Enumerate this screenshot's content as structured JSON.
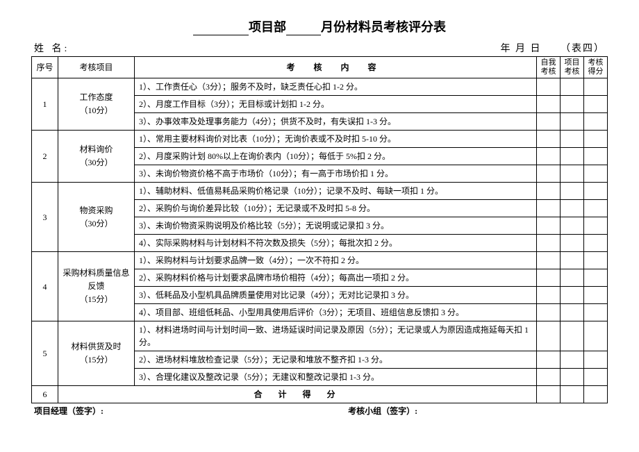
{
  "title": {
    "part1": "项目部",
    "part2": "月份材料员考核评分表"
  },
  "header": {
    "name_label": "姓 名:",
    "date_label": "年  月  日",
    "form_number": "（表四）"
  },
  "columns": {
    "seq": "序号",
    "category": "考核项目",
    "content": "考 核 内 容",
    "self_score_l1": "自我",
    "self_score_l2": "考核",
    "project_score_l1": "项目",
    "project_score_l2": "考核",
    "score_l1": "考核",
    "score_l2": "得分"
  },
  "sections": [
    {
      "seq": "1",
      "category_name": "工作态度",
      "category_points": "（10分）",
      "items": [
        "1）、工作责任心（3分）；服务不及时，缺乏责任心扣 1-2 分。",
        "2）、月度工作目标（3分）；无目标或计划扣 1-2 分。",
        "3）、办事效率及处理事务能力（4分）；供货不及时，有失误扣 1-3 分。"
      ]
    },
    {
      "seq": "2",
      "category_name": "材料询价",
      "category_points": "（30分）",
      "items": [
        "1）、常用主要材料询价对比表（10分）；无询价表或不及时扣 5-10 分。",
        "2）、月度采购计划 80%以上在询价表内（10分）；每低于 5%扣 2 分。",
        "3）、未询价物资价格不高于市场价（10分）；有一高于市场价扣 1 分。"
      ]
    },
    {
      "seq": "3",
      "category_name": "物资采购",
      "category_points": "（30分）",
      "items": [
        "1）、辅助材料、低值易耗品采购价格记录（10分）；记录不及时、每缺一项扣 1 分。",
        "2）、采购价与询价差异比较（10分）；无记录或不及时扣 5-8 分。",
        "3）、未询价物资采购说明及价格比较（5分）；无说明或记录扣 3 分。",
        "4）、实际采购材料与计划材料不符次数及损失（5分）；每批次扣 2 分。"
      ]
    },
    {
      "seq": "4",
      "category_name": "采购材料质量信息反馈",
      "category_points": "（15分）",
      "items": [
        "1）、采购材料与计划要求品牌一致（4分）；一次不符扣 2 分。",
        "2）、采购材料价格与计划要求品牌市场价相符（4分）；每高出一项扣 2 分。",
        "3）、低耗品及小型机具品牌质量使用对比记录（4分）；无对比记录扣 3 分。",
        "4）、项目部、班组低耗品、小型用具使用后评价（3分）；无项目、班组信息反馈扣 3 分。"
      ]
    },
    {
      "seq": "5",
      "category_name": "材料供货及时",
      "category_points": "（15分）",
      "items": [
        "1）、材料进场时间与计划时间一致、进场延误时间记录及原因（5分）；无记录或人为原因造成拖延每天扣 1 分。",
        "2）、进场材料堆放检查记录（5分）；无记录和堆放不整齐扣 1-3 分。",
        "3）、合理化建议及整改记录（5分）；无建议和整改记录扣 1-3 分。"
      ]
    }
  ],
  "total": {
    "seq": "6",
    "label": "合 计 得 分"
  },
  "footer": {
    "left": "项目经理（签字）:",
    "right": "考核小组（签字）:"
  },
  "styling": {
    "font_family": "SimSun",
    "border_color": "#000000",
    "background_color": "#ffffff",
    "text_color": "#000000",
    "title_fontsize": 18,
    "header_fontsize": 14,
    "cell_fontsize": 12,
    "score_header_fontsize": 11
  }
}
